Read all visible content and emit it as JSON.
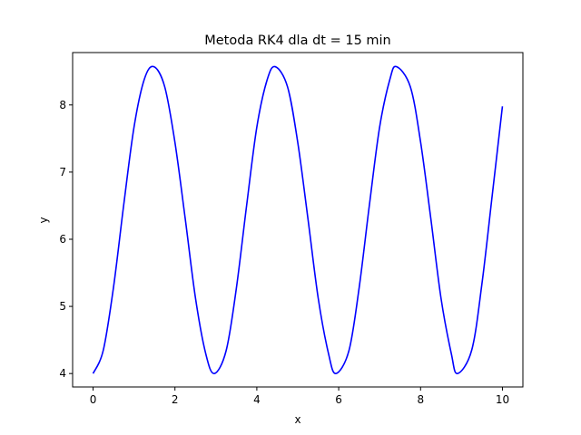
{
  "chart_data": {
    "type": "line",
    "title": "Metoda RK4 dla dt = 15 min",
    "xlabel": "x",
    "ylabel": "y",
    "xlim": [
      -0.5,
      10.5
    ],
    "ylim": [
      3.8,
      8.78
    ],
    "xticks": [
      0,
      2,
      4,
      6,
      8,
      10
    ],
    "yticks": [
      4,
      5,
      6,
      7,
      8
    ],
    "grid": false,
    "legend": "none",
    "series": [
      {
        "color": "#0000ff",
        "x": [
          0,
          0.25,
          0.5,
          0.75,
          1.0,
          1.25,
          1.48,
          1.75,
          2.0,
          2.25,
          2.5,
          2.75,
          2.96,
          3.25,
          3.5,
          3.75,
          4.0,
          4.25,
          4.45,
          4.75,
          5.0,
          5.25,
          5.5,
          5.75,
          5.93,
          6.25,
          6.5,
          6.75,
          7.0,
          7.25,
          7.41,
          7.75,
          8.0,
          8.25,
          8.5,
          8.75,
          8.9,
          9.25,
          9.5,
          9.75,
          10.0
        ],
        "y": [
          4.0,
          4.35,
          5.29,
          6.52,
          7.67,
          8.38,
          8.57,
          8.27,
          7.44,
          6.31,
          5.13,
          4.3,
          4.0,
          4.34,
          5.27,
          6.5,
          7.67,
          8.37,
          8.57,
          8.27,
          7.44,
          6.3,
          5.12,
          4.3,
          4.0,
          4.34,
          5.28,
          6.51,
          7.67,
          8.38,
          8.57,
          8.27,
          7.45,
          6.31,
          5.12,
          4.3,
          4.0,
          4.35,
          5.34,
          6.65,
          7.98
        ]
      }
    ]
  }
}
